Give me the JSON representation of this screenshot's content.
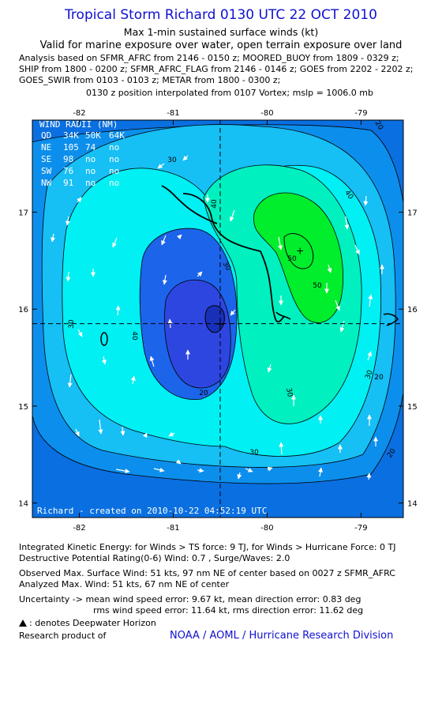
{
  "header": {
    "title": "Tropical Storm Richard 0130 UTC 22 OCT 2010",
    "subtitle": "Max 1-min sustained surface winds (kt)",
    "validity": "Valid for marine exposure over water, open terrain exposure over land",
    "analysis_lines": [
      "Analysis based on SFMR_AFRC from 2146 - 0150 z; MOORED_BUOY from 1809 - 0329 z;",
      "SHIP from 1800 - 0200 z; SFMR_AFRC_FLAG from 2146 - 0146 z; GOES from 2202 - 2202 z;",
      "GOES_SWIR from 0103 - 0103 z; METAR from 1800 - 0300 z;"
    ],
    "position_note": "0130 z position interpolated from 0107 Vortex; mslp = 1006.0 mb"
  },
  "map": {
    "x_ticks": [
      "-82",
      "-81",
      "-80",
      "-79"
    ],
    "y_ticks": [
      "17",
      "16",
      "15",
      "14"
    ],
    "lon_range": [
      -82.5,
      -78.55
    ],
    "lat_range": [
      13.85,
      17.95
    ],
    "center": {
      "lon": -80.5,
      "lat": 15.85
    },
    "max_wind_marker": {
      "lon": -79.65,
      "lat": 16.6
    },
    "contour_labels": [
      "20",
      "30",
      "40",
      "50",
      "30",
      "30",
      "40",
      "40",
      "30",
      "30",
      "20",
      "20",
      "50",
      "30",
      "20"
    ],
    "wind_radii": {
      "title": "WIND RADII (NM)",
      "columns": [
        "QD",
        "34K",
        "50K",
        "64K"
      ],
      "rows": [
        [
          "NE",
          "105",
          "74",
          "no"
        ],
        [
          "SE",
          "98",
          "no",
          "no"
        ],
        [
          "SW",
          "76",
          "no",
          "no"
        ],
        [
          "NW",
          "91",
          "no",
          "no"
        ]
      ]
    },
    "footer_overlay": "Richard - created on 2010-10-22 04:52:19 UTC",
    "colors": {
      "outer": "#0a6fe0",
      "lvl10": "#0c8fec",
      "lvl20": "#16bff4",
      "lvl30": "#00f0f4",
      "lvl40": "#00f0c0",
      "lvl50": "#00ee2c",
      "core1": "#1c64ea",
      "core2": "#2e46e0",
      "core3": "#1830b8"
    }
  },
  "info": {
    "ike": "Integrated Kinetic Energy:  for Winds > TS force: 9 TJ,  for Winds > Hurricane Force: 0 TJ",
    "dpr": "Destructive Potential Rating(0-6)   Wind: 0.7 , Surge/Waves: 2.0",
    "obs_max": "Observed Max. Surface Wind: 51 kts, 97 nm NE of center based on 0027 z SFMR_AFRC",
    "analyzed_max": "Analyzed Max. Wind: 51 kts, 67 nm NE of center",
    "uncertainty1": "Uncertainty -> mean wind speed error: 9.67 kt,   mean direction error: 0.83 deg",
    "uncertainty2": "rms wind speed error: 11.64 kt,   rms direction error: 11.62 deg",
    "legend": ": denotes Deepwater Horizon",
    "research": "Research product of",
    "credit": "NOAA / AOML / Hurricane Research Division"
  }
}
